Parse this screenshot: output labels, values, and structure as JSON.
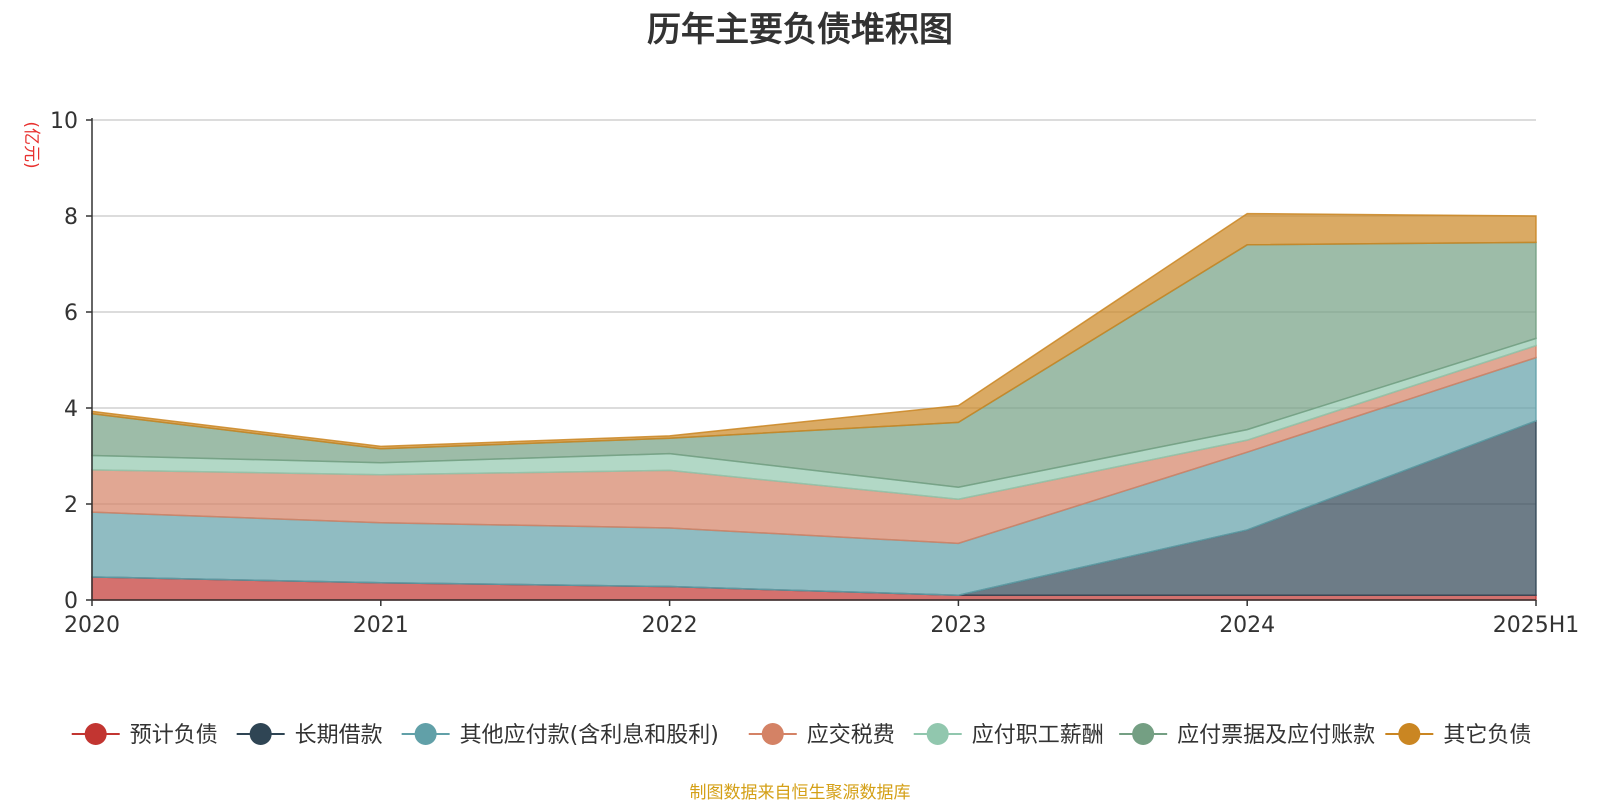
{
  "chart_data": {
    "type": "area",
    "stacked": true,
    "title": "历年主要负债堆积图",
    "ylabel": "(亿元)",
    "xlabel": "",
    "categories": [
      "2020",
      "2021",
      "2022",
      "2023",
      "2024",
      "2025H1"
    ],
    "ylim": [
      0,
      10
    ],
    "yticks": [
      0,
      2,
      4,
      6,
      8,
      10
    ],
    "grid": true,
    "legend_position": "bottom",
    "series": [
      {
        "name": "预计负债",
        "color": "#c23531",
        "values": [
          0.48,
          0.36,
          0.28,
          0.1,
          0.1,
          0.1
        ]
      },
      {
        "name": "长期借款",
        "color": "#2f4554",
        "values": [
          0.0,
          0.0,
          0.0,
          0.0,
          1.36,
          3.63
        ]
      },
      {
        "name": "其他应付款(含利息和股利)",
        "color": "#61a0a8",
        "values": [
          1.35,
          1.25,
          1.22,
          1.08,
          1.62,
          1.32
        ]
      },
      {
        "name": "应交税费",
        "color": "#d48265",
        "values": [
          0.88,
          1.0,
          1.2,
          0.92,
          0.25,
          0.25
        ]
      },
      {
        "name": "应付职工薪酬",
        "color": "#91c7ae",
        "values": [
          0.3,
          0.25,
          0.35,
          0.25,
          0.22,
          0.15
        ]
      },
      {
        "name": "应付票据及应付账款",
        "color": "#749f83",
        "values": [
          0.87,
          0.29,
          0.32,
          1.35,
          3.85,
          2.0
        ]
      },
      {
        "name": "其它负债",
        "color": "#ca8622",
        "values": [
          0.05,
          0.05,
          0.05,
          0.35,
          0.65,
          0.55
        ]
      }
    ]
  },
  "footer": {
    "source": "制图数据来自恒生聚源数据库"
  }
}
